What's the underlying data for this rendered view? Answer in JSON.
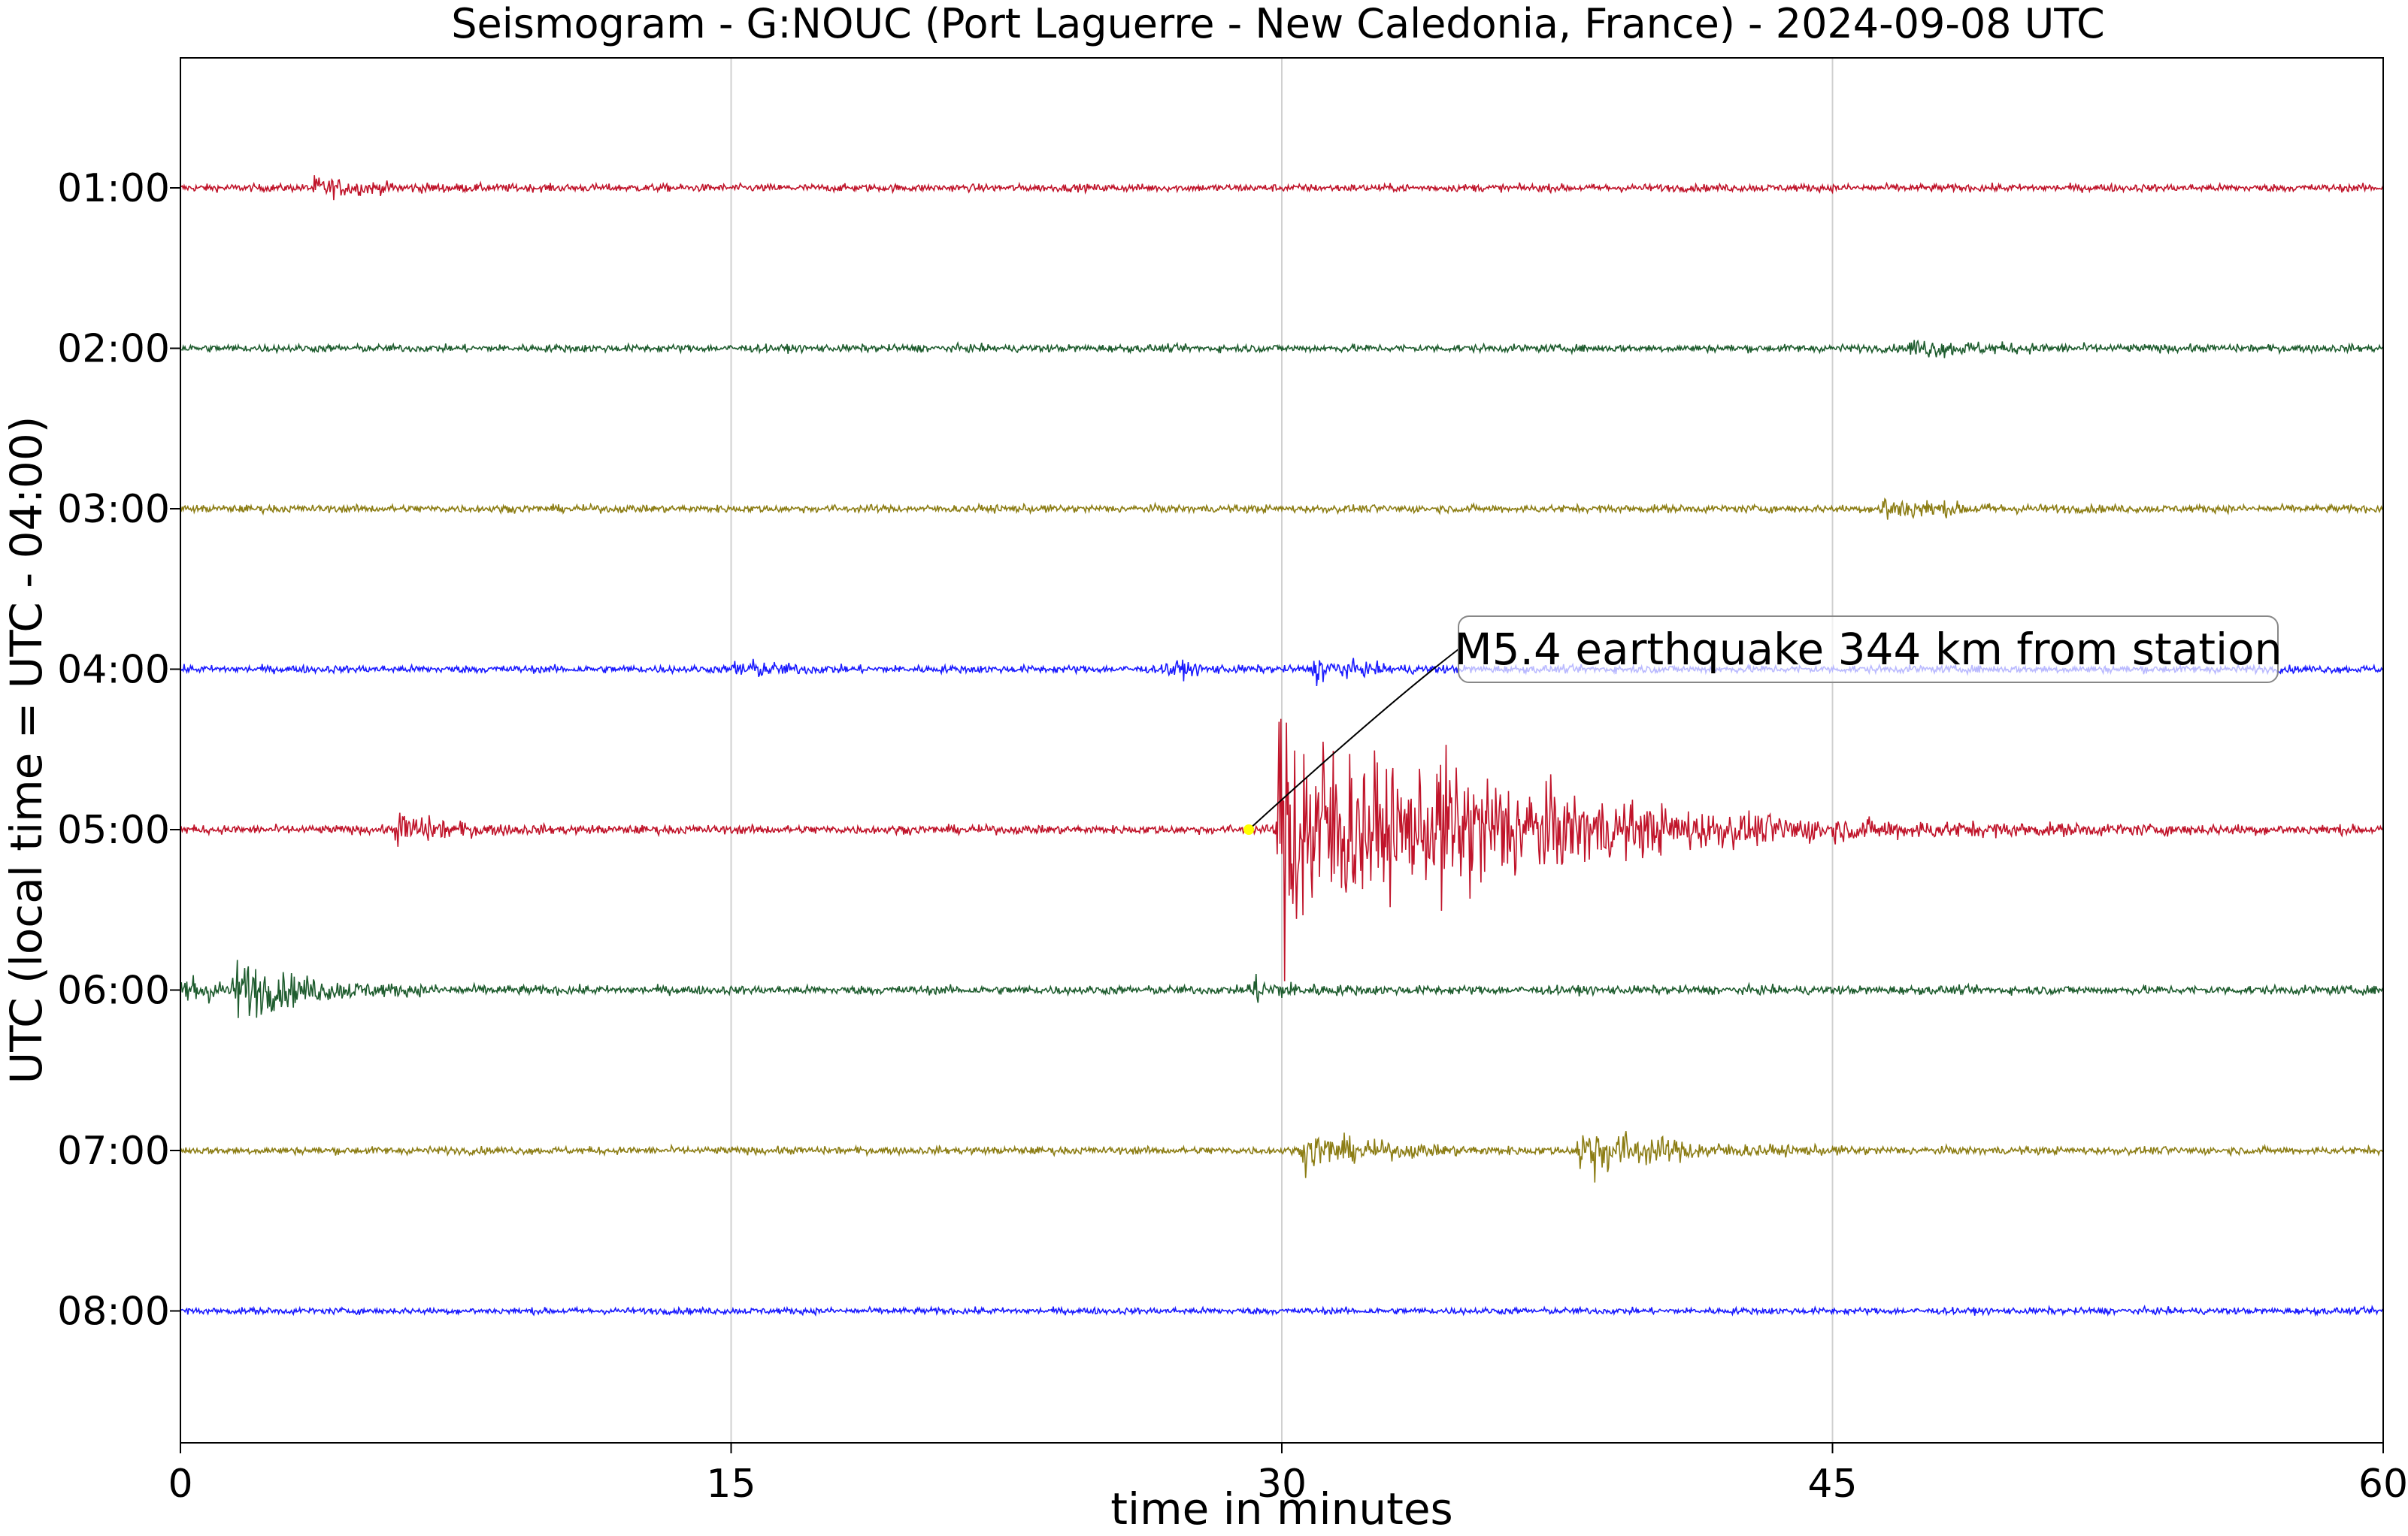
{
  "chart_data": {
    "type": "line",
    "title": "Seismogram - G:NOUC (Port Laguerre - New Caledonia, France) - 2024-09-08 UTC",
    "xlabel": "time in minutes",
    "ylabel": "UTC (local time = UTC - 04:00)",
    "xlim": [
      0,
      60
    ],
    "x_ticks": [
      "0",
      "15",
      "30",
      "45",
      "60"
    ],
    "x_tick_values": [
      0,
      15,
      30,
      45,
      60
    ],
    "grid": "vertical",
    "series": [
      {
        "row_label": "01:00",
        "color": "#c0142a",
        "noise": 0.07,
        "bursts": [
          [
            3.5,
            0.18,
            1.5
          ]
        ]
      },
      {
        "row_label": "02:00",
        "color": "#1e5c2e",
        "noise": 0.07,
        "bursts": [
          [
            47.0,
            0.15,
            2.0
          ]
        ]
      },
      {
        "row_label": "03:00",
        "color": "#8c7d14",
        "noise": 0.07,
        "bursts": [
          [
            46.2,
            0.25,
            1.5
          ]
        ]
      },
      {
        "row_label": "04:00",
        "color": "#1a1aff",
        "noise": 0.07,
        "bursts": [
          [
            15.0,
            0.2,
            1.0
          ],
          [
            26.8,
            0.2,
            0.6
          ],
          [
            30.8,
            0.25,
            1.0
          ]
        ]
      },
      {
        "row_label": "05:00",
        "color": "#c0142a",
        "noise": 0.08,
        "bursts": [
          [
            5.8,
            0.35,
            1.2
          ],
          [
            29.8,
            2.6,
            3.5
          ],
          [
            34.0,
            0.7,
            6.0
          ]
        ]
      },
      {
        "row_label": "06:00",
        "color": "#1e5c2e",
        "noise": 0.08,
        "bursts": [
          [
            0.0,
            0.4,
            0.8
          ],
          [
            1.4,
            0.55,
            1.8
          ],
          [
            29.0,
            0.25,
            1.0
          ]
        ]
      },
      {
        "row_label": "07:00",
        "color": "#8c7d14",
        "noise": 0.07,
        "bursts": [
          [
            30.5,
            0.35,
            1.8
          ],
          [
            38.0,
            0.55,
            2.0
          ]
        ]
      },
      {
        "row_label": "08:00",
        "color": "#1a1aff",
        "noise": 0.06,
        "bursts": []
      }
    ],
    "annotation": {
      "text": "M5.4 earthquake 344 km from station",
      "time_min": 29.1,
      "row_label": "05:00"
    }
  }
}
